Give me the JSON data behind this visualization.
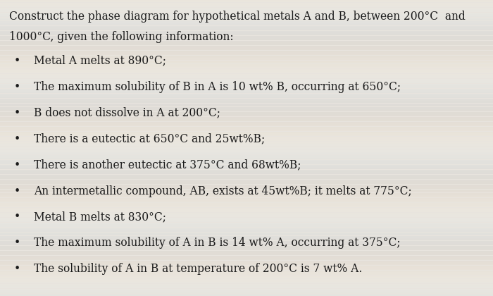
{
  "title_line1": "Construct the phase diagram for hypothetical metals A and B, between 200°C  and",
  "title_line2": "1000°C, given the following information:",
  "bullets": [
    "Metal A melts at 890°C;",
    "The maximum solubility of B in A is 10 wt% B, occurring at 650°C;",
    "B does not dissolve in A at 200°C;",
    "There is a eutectic at 650°C and 25wt%B;",
    "There is another eutectic at 375°C and 68wt%B;",
    "An intermetallic compound, AB, exists at 45wt%B; it melts at 775°C;",
    "Metal B melts at 830°C;",
    "The maximum solubility of A in B is 14 wt% A, occurring at 375°C;",
    "The solubility of A in B at temperature of 200°C is 7 wt% A."
  ],
  "bg_color": "#e8e4de",
  "text_color": "#1a1a1a",
  "title_fontsize": 11.2,
  "bullet_fontsize": 11.2,
  "bullet_char": "•"
}
